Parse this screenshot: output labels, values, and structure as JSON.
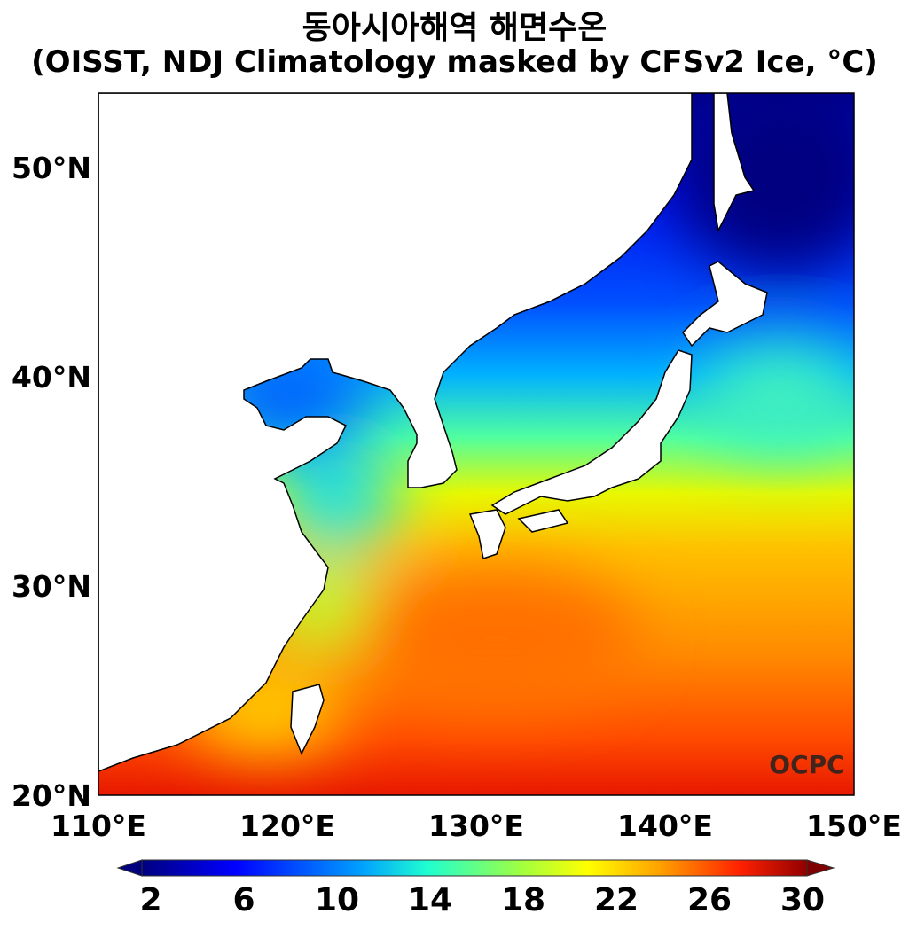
{
  "title": {
    "line1": "동아시아해역 해면수온",
    "line2": "(OISST, NDJ Climatology masked by CFSv2 Ice, °C)"
  },
  "map": {
    "lat_labels": [
      "50°N",
      "40°N",
      "30°N",
      "20°N"
    ],
    "lon_labels": [
      "110°E",
      "120°E",
      "130°E",
      "140°E",
      "150°E"
    ],
    "lon_range": [
      110,
      150
    ],
    "lat_range": [
      20,
      53.5
    ],
    "logo": "OCPC"
  },
  "colorbar": {
    "ticks": [
      "2",
      "6",
      "10",
      "14",
      "18",
      "22",
      "26",
      "30"
    ],
    "range": [
      0,
      32
    ],
    "extend": "both",
    "colors": [
      "#00007f",
      "#0000ff",
      "#007fff",
      "#00ffff",
      "#7fff7f",
      "#ffff00",
      "#ff7f00",
      "#ff0000",
      "#7f0000"
    ]
  }
}
